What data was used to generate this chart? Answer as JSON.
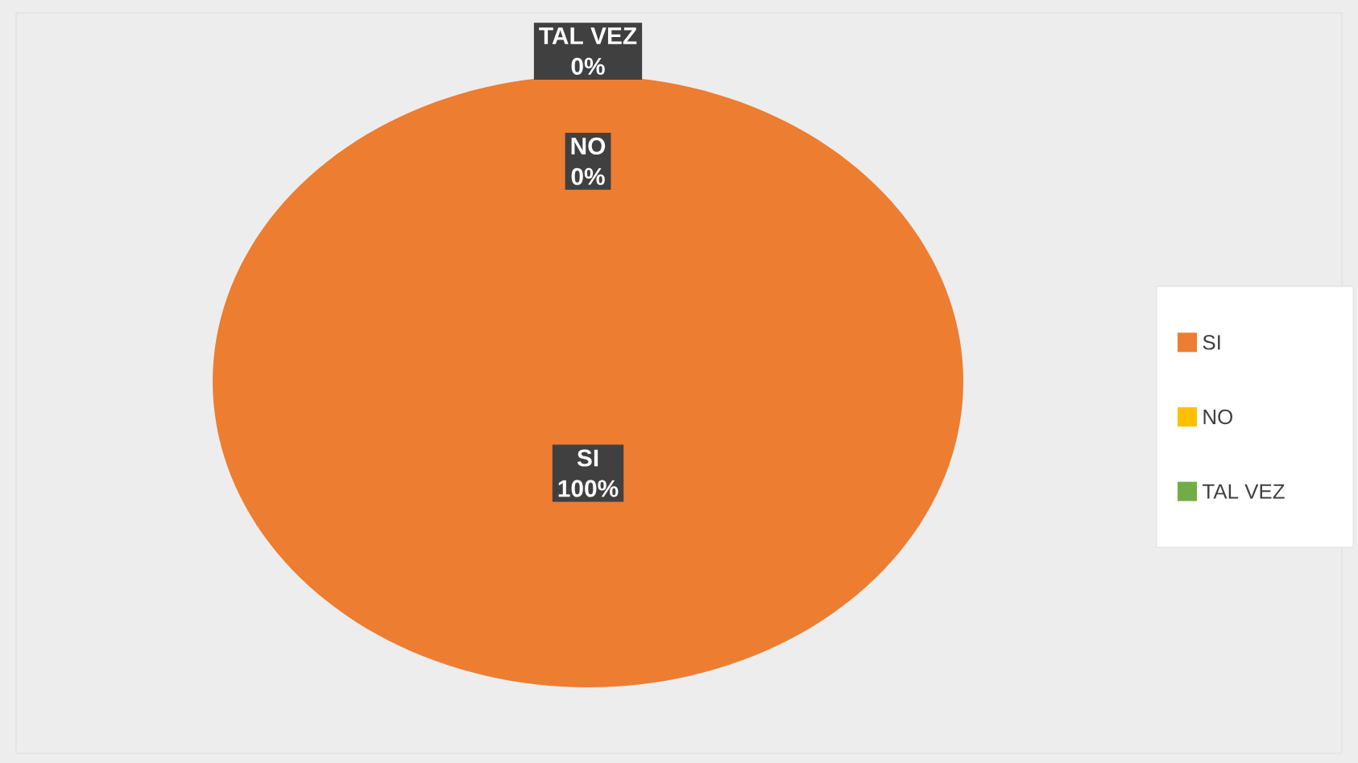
{
  "chart_data": {
    "type": "pie",
    "categories": [
      "SI",
      "NO",
      "TAL VEZ"
    ],
    "values": [
      100,
      0,
      0
    ],
    "colors": [
      "#ed7d31",
      "#ffc000",
      "#70ad47"
    ],
    "value_labels": [
      "100%",
      "0%",
      "0%"
    ],
    "legend": "right"
  }
}
